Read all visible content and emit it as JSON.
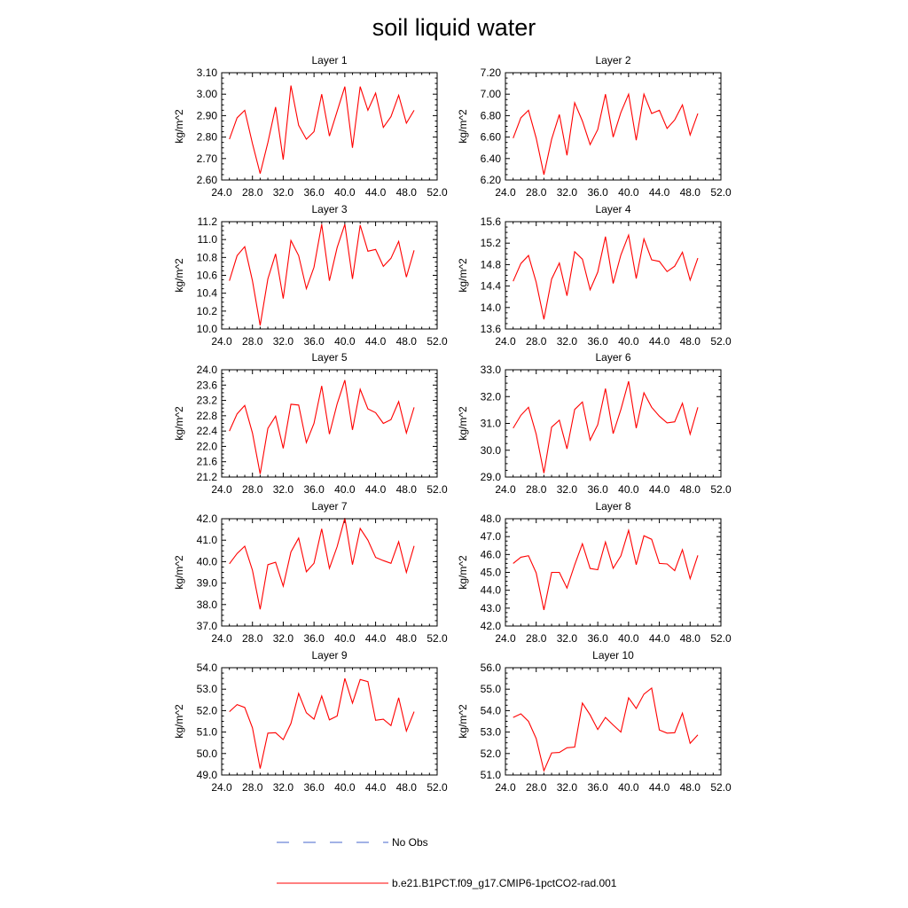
{
  "figure": {
    "title": "soil liquid water"
  },
  "legend": {
    "items": [
      {
        "label": "No Obs",
        "color": "#4466cc",
        "style": "dashed"
      },
      {
        "label": "b.e21.B1PCT.f09_g17.CMIP6-1pctCO2-rad.001",
        "color": "#ff0000",
        "style": "solid"
      }
    ]
  },
  "chart_data": [
    {
      "type": "line",
      "title": "Layer 1",
      "ylabel": "kg/m^2",
      "xlim": [
        24,
        52
      ],
      "xticks": [
        "24.0",
        "28.0",
        "32.0",
        "36.0",
        "40.0",
        "44.0",
        "48.0",
        "52.0"
      ],
      "ylim": [
        2.6,
        3.1
      ],
      "yticks": [
        "2.60",
        "2.70",
        "2.80",
        "2.90",
        "3.00",
        "3.10"
      ],
      "series": [
        {
          "color": "#ff0000",
          "x": [
            25,
            26,
            27,
            28,
            29,
            30,
            31,
            32,
            33,
            34,
            35,
            36,
            37,
            38,
            39,
            40,
            41,
            42,
            43,
            44,
            45,
            46,
            47,
            48,
            49
          ],
          "y": [
            2.79,
            2.89,
            2.925,
            2.77,
            2.63,
            2.775,
            2.94,
            2.695,
            3.04,
            2.855,
            2.79,
            2.825,
            3.0,
            2.805,
            2.92,
            3.035,
            2.75,
            3.035,
            2.925,
            3.005,
            2.845,
            2.895,
            2.995,
            2.865,
            2.925
          ]
        }
      ]
    },
    {
      "type": "line",
      "title": "Layer 2",
      "ylabel": "kg/m^2",
      "xlim": [
        24,
        52
      ],
      "xticks": [
        "24.0",
        "28.0",
        "32.0",
        "36.0",
        "40.0",
        "44.0",
        "48.0",
        "52.0"
      ],
      "ylim": [
        6.2,
        7.2
      ],
      "yticks": [
        "6.20",
        "6.40",
        "6.60",
        "6.80",
        "7.00",
        "7.20"
      ],
      "series": [
        {
          "color": "#ff0000",
          "x": [
            25,
            26,
            27,
            28,
            29,
            30,
            31,
            32,
            33,
            34,
            35,
            36,
            37,
            38,
            39,
            40,
            41,
            42,
            43,
            44,
            45,
            46,
            47,
            48,
            49
          ],
          "y": [
            6.59,
            6.78,
            6.85,
            6.59,
            6.25,
            6.58,
            6.81,
            6.43,
            6.92,
            6.75,
            6.53,
            6.67,
            7.0,
            6.6,
            6.83,
            7.0,
            6.57,
            7.0,
            6.82,
            6.85,
            6.68,
            6.76,
            6.9,
            6.62,
            6.82
          ]
        }
      ]
    },
    {
      "type": "line",
      "title": "Layer 3",
      "ylabel": "kg/m^2",
      "xlim": [
        24,
        52
      ],
      "xticks": [
        "24.0",
        "28.0",
        "32.0",
        "36.0",
        "40.0",
        "44.0",
        "48.0",
        "52.0"
      ],
      "ylim": [
        10.0,
        11.2
      ],
      "yticks": [
        "10.0",
        "10.2",
        "10.4",
        "10.6",
        "10.8",
        "11.0",
        "11.2"
      ],
      "series": [
        {
          "color": "#ff0000",
          "x": [
            25,
            26,
            27,
            28,
            29,
            30,
            31,
            32,
            33,
            34,
            35,
            36,
            37,
            38,
            39,
            40,
            41,
            42,
            43,
            44,
            45,
            46,
            47,
            48,
            49
          ],
          "y": [
            10.54,
            10.82,
            10.92,
            10.54,
            10.04,
            10.56,
            10.84,
            10.34,
            10.99,
            10.82,
            10.45,
            10.69,
            11.17,
            10.54,
            10.91,
            11.17,
            10.56,
            11.16,
            10.87,
            10.89,
            10.7,
            10.79,
            10.98,
            10.58,
            10.88
          ]
        }
      ]
    },
    {
      "type": "line",
      "title": "Layer 4",
      "ylabel": "kg/m^2",
      "xlim": [
        24,
        52
      ],
      "xticks": [
        "24.0",
        "28.0",
        "32.0",
        "36.0",
        "40.0",
        "44.0",
        "48.0",
        "52.0"
      ],
      "ylim": [
        13.6,
        15.6
      ],
      "yticks": [
        "13.6",
        "14.0",
        "14.4",
        "14.8",
        "15.2",
        "15.6"
      ],
      "series": [
        {
          "color": "#ff0000",
          "x": [
            25,
            26,
            27,
            28,
            29,
            30,
            31,
            32,
            33,
            34,
            35,
            36,
            37,
            38,
            39,
            40,
            41,
            42,
            43,
            44,
            45,
            46,
            47,
            48,
            49
          ],
          "y": [
            14.49,
            14.82,
            14.97,
            14.47,
            13.78,
            14.53,
            14.83,
            14.22,
            15.04,
            14.9,
            14.33,
            14.66,
            15.32,
            14.45,
            14.98,
            15.35,
            14.54,
            15.28,
            14.89,
            14.86,
            14.67,
            14.77,
            15.03,
            14.51,
            14.92
          ]
        }
      ]
    },
    {
      "type": "line",
      "title": "Layer 5",
      "ylabel": "kg/m^2",
      "xlim": [
        24,
        52
      ],
      "xticks": [
        "24.0",
        "28.0",
        "32.0",
        "36.0",
        "40.0",
        "44.0",
        "48.0",
        "52.0"
      ],
      "ylim": [
        21.2,
        24.0
      ],
      "yticks": [
        "21.2",
        "21.6",
        "22.0",
        "22.4",
        "22.8",
        "23.2",
        "23.6",
        "24.0"
      ],
      "series": [
        {
          "color": "#ff0000",
          "x": [
            25,
            26,
            27,
            28,
            29,
            30,
            31,
            32,
            33,
            34,
            35,
            36,
            37,
            38,
            39,
            40,
            41,
            42,
            43,
            44,
            45,
            46,
            47,
            48,
            49
          ],
          "y": [
            22.4,
            22.85,
            23.07,
            22.35,
            21.28,
            22.47,
            22.79,
            21.95,
            23.1,
            23.08,
            22.1,
            22.6,
            23.58,
            22.32,
            23.11,
            23.73,
            22.43,
            23.49,
            22.98,
            22.88,
            22.6,
            22.7,
            23.17,
            22.35,
            23.02
          ]
        }
      ]
    },
    {
      "type": "line",
      "title": "Layer 6",
      "ylabel": "kg/m^2",
      "xlim": [
        24,
        52
      ],
      "xticks": [
        "24.0",
        "28.0",
        "32.0",
        "36.0",
        "40.0",
        "44.0",
        "48.0",
        "52.0"
      ],
      "ylim": [
        29.0,
        33.0
      ],
      "yticks": [
        "29.0",
        "30.0",
        "31.0",
        "32.0",
        "33.0"
      ],
      "series": [
        {
          "color": "#ff0000",
          "x": [
            25,
            26,
            27,
            28,
            29,
            30,
            31,
            32,
            33,
            34,
            35,
            36,
            37,
            38,
            39,
            40,
            41,
            42,
            43,
            44,
            45,
            46,
            47,
            48,
            49
          ],
          "y": [
            30.82,
            31.3,
            31.6,
            30.6,
            29.15,
            30.86,
            31.12,
            30.05,
            31.52,
            31.8,
            30.38,
            30.95,
            32.3,
            30.62,
            31.52,
            32.57,
            30.82,
            32.14,
            31.6,
            31.27,
            31.02,
            31.06,
            31.75,
            30.6,
            31.6
          ]
        }
      ]
    },
    {
      "type": "line",
      "title": "Layer 7",
      "ylabel": "kg/m^2",
      "xlim": [
        24,
        52
      ],
      "xticks": [
        "24.0",
        "28.0",
        "32.0",
        "36.0",
        "40.0",
        "44.0",
        "48.0",
        "52.0"
      ],
      "ylim": [
        37.0,
        42.0
      ],
      "yticks": [
        "37.0",
        "38.0",
        "39.0",
        "40.0",
        "41.0",
        "42.0"
      ],
      "series": [
        {
          "color": "#ff0000",
          "x": [
            25,
            26,
            27,
            28,
            29,
            30,
            31,
            32,
            33,
            34,
            35,
            36,
            37,
            38,
            39,
            40,
            41,
            42,
            43,
            44,
            45,
            46,
            47,
            48,
            49
          ],
          "y": [
            39.9,
            40.38,
            40.72,
            39.6,
            37.78,
            39.86,
            39.97,
            38.86,
            40.45,
            41.1,
            39.53,
            39.92,
            41.53,
            39.69,
            40.7,
            42.03,
            39.86,
            41.55,
            41.0,
            40.2,
            40.05,
            39.92,
            40.93,
            39.5,
            40.73
          ]
        }
      ]
    },
    {
      "type": "line",
      "title": "Layer 8",
      "ylabel": "kg/m^2",
      "xlim": [
        24,
        52
      ],
      "xticks": [
        "24.0",
        "28.0",
        "32.0",
        "36.0",
        "40.0",
        "44.0",
        "48.0",
        "52.0"
      ],
      "ylim": [
        42.0,
        48.0
      ],
      "yticks": [
        "42.0",
        "43.0",
        "44.0",
        "45.0",
        "46.0",
        "47.0",
        "48.0"
      ],
      "series": [
        {
          "color": "#ff0000",
          "x": [
            25,
            26,
            27,
            28,
            29,
            30,
            31,
            32,
            33,
            34,
            35,
            36,
            37,
            38,
            39,
            40,
            41,
            42,
            43,
            44,
            45,
            46,
            47,
            48,
            49
          ],
          "y": [
            45.5,
            45.85,
            45.93,
            44.97,
            42.9,
            45.0,
            45.0,
            44.12,
            45.42,
            46.6,
            45.22,
            45.15,
            46.7,
            45.23,
            45.92,
            47.35,
            45.43,
            47.05,
            46.85,
            45.5,
            45.47,
            45.1,
            46.27,
            44.65,
            45.95
          ]
        }
      ]
    },
    {
      "type": "line",
      "title": "Layer 9",
      "ylabel": "kg/m^2",
      "xlim": [
        24,
        52
      ],
      "xticks": [
        "24.0",
        "28.0",
        "32.0",
        "36.0",
        "40.0",
        "44.0",
        "48.0",
        "52.0"
      ],
      "ylim": [
        49.0,
        54.0
      ],
      "yticks": [
        "49.0",
        "50.0",
        "51.0",
        "52.0",
        "53.0",
        "54.0"
      ],
      "series": [
        {
          "color": "#ff0000",
          "x": [
            25,
            26,
            27,
            28,
            29,
            30,
            31,
            32,
            33,
            34,
            35,
            36,
            37,
            38,
            39,
            40,
            41,
            42,
            43,
            44,
            45,
            46,
            47,
            48,
            49
          ],
          "y": [
            51.95,
            52.28,
            52.15,
            51.2,
            49.3,
            50.95,
            50.97,
            50.65,
            51.4,
            52.8,
            51.9,
            51.6,
            52.68,
            51.57,
            51.75,
            53.5,
            52.35,
            53.45,
            53.35,
            51.55,
            51.6,
            51.3,
            52.6,
            51.05,
            51.95
          ]
        }
      ]
    },
    {
      "type": "line",
      "title": "Layer 10",
      "ylabel": "kg/m^2",
      "xlim": [
        24,
        52
      ],
      "xticks": [
        "24.0",
        "28.0",
        "32.0",
        "36.0",
        "40.0",
        "44.0",
        "48.0",
        "52.0"
      ],
      "ylim": [
        51.0,
        56.0
      ],
      "yticks": [
        "51.0",
        "52.0",
        "53.0",
        "54.0",
        "55.0",
        "56.0"
      ],
      "series": [
        {
          "color": "#ff0000",
          "x": [
            25,
            26,
            27,
            28,
            29,
            30,
            31,
            32,
            33,
            34,
            35,
            36,
            37,
            38,
            39,
            40,
            41,
            42,
            43,
            44,
            45,
            46,
            47,
            48,
            49
          ],
          "y": [
            53.68,
            53.85,
            53.5,
            52.7,
            51.2,
            52.03,
            52.05,
            52.27,
            52.3,
            54.35,
            53.8,
            53.12,
            53.68,
            53.33,
            53.0,
            54.6,
            54.1,
            54.77,
            55.05,
            53.1,
            52.95,
            52.97,
            53.88,
            52.48,
            52.87
          ]
        }
      ]
    }
  ]
}
